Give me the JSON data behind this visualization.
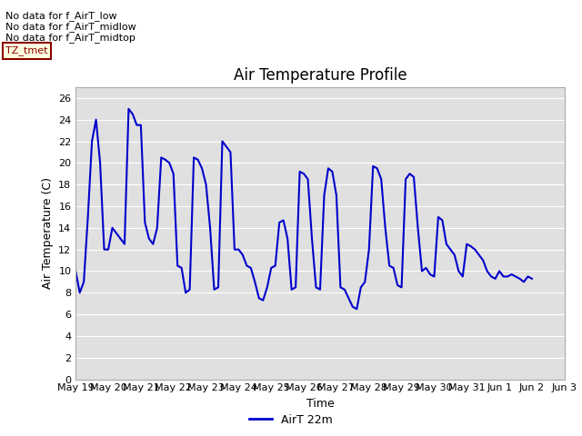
{
  "title": "Air Temperature Profile",
  "xlabel": "Time",
  "ylabel": "Air Temperature (C)",
  "ylim": [
    0,
    27
  ],
  "yticks": [
    0,
    2,
    4,
    6,
    8,
    10,
    12,
    14,
    16,
    18,
    20,
    22,
    24,
    26
  ],
  "line_color": "#0000cc",
  "line_width": 1.5,
  "background_color": "#e0e0e0",
  "legend_label": "AirT 22m",
  "annotations_left": [
    "No data for f_AirT_low",
    "No data for f_AirT_midlow",
    "No data for f_AirT_midtop"
  ],
  "annotation_box_text": "TZ_tmet",
  "x_tick_labels": [
    "May 19",
    "May 20",
    "May 21",
    "May 22",
    "May 23",
    "May 24",
    "May 25",
    "May 26",
    "May 27",
    "May 28",
    "May 29",
    "May 30",
    "May 31",
    "Jun 1",
    "Jun 2",
    "Jun 3"
  ],
  "time_data": [
    0,
    0.125,
    0.25,
    0.375,
    0.5,
    0.625,
    0.75,
    0.875,
    1.0,
    1.125,
    1.25,
    1.375,
    1.5,
    1.625,
    1.75,
    1.875,
    2.0,
    2.125,
    2.25,
    2.375,
    2.5,
    2.625,
    2.75,
    2.875,
    3.0,
    3.125,
    3.25,
    3.375,
    3.5,
    3.625,
    3.75,
    3.875,
    4.0,
    4.125,
    4.25,
    4.375,
    4.5,
    4.625,
    4.75,
    4.875,
    5.0,
    5.125,
    5.25,
    5.375,
    5.5,
    5.625,
    5.75,
    5.875,
    6.0,
    6.125,
    6.25,
    6.375,
    6.5,
    6.625,
    6.75,
    6.875,
    7.0,
    7.125,
    7.25,
    7.375,
    7.5,
    7.625,
    7.75,
    7.875,
    8.0,
    8.125,
    8.25,
    8.375,
    8.5,
    8.625,
    8.75,
    8.875,
    9.0,
    9.125,
    9.25,
    9.375,
    9.5,
    9.625,
    9.75,
    9.875,
    10.0,
    10.125,
    10.25,
    10.375,
    10.5,
    10.625,
    10.75,
    10.875,
    11.0,
    11.125,
    11.25,
    11.375,
    11.5,
    11.625,
    11.75,
    11.875,
    12.0,
    12.125,
    12.25,
    12.375,
    12.5,
    12.625,
    12.75,
    12.875,
    13.0,
    13.125,
    13.25,
    13.375,
    13.5,
    13.625,
    13.75,
    13.875,
    14.0
  ],
  "temp_data": [
    10.0,
    8.0,
    9.0,
    15.0,
    22.0,
    24.0,
    20.0,
    12.0,
    12.0,
    14.0,
    13.5,
    13.0,
    12.5,
    25.0,
    24.5,
    23.5,
    23.5,
    14.5,
    13.0,
    12.5,
    14.0,
    20.5,
    20.3,
    20.0,
    19.0,
    10.5,
    10.3,
    8.0,
    8.3,
    20.5,
    20.3,
    19.5,
    18.0,
    14.0,
    8.3,
    8.5,
    22.0,
    21.5,
    21.0,
    12.0,
    12.0,
    11.5,
    10.5,
    10.3,
    9.0,
    7.5,
    7.3,
    8.5,
    10.3,
    10.5,
    14.5,
    14.7,
    13.0,
    8.3,
    8.5,
    19.2,
    19.0,
    18.5,
    13.0,
    8.5,
    8.3,
    17.0,
    19.5,
    19.2,
    17.0,
    8.5,
    8.3,
    7.5,
    6.7,
    6.5,
    8.5,
    9.0,
    12.0,
    19.7,
    19.5,
    18.5,
    14.0,
    10.5,
    10.3,
    8.7,
    8.5,
    18.5,
    19.0,
    18.7,
    14.0,
    10.0,
    10.3,
    9.7,
    9.5,
    15.0,
    14.7,
    12.5,
    12.0,
    11.5,
    10.0,
    9.5,
    12.5,
    12.3,
    12.0,
    11.5,
    11.0,
    10.0,
    9.5,
    9.3,
    10.0,
    9.5,
    9.5,
    9.7,
    9.5,
    9.3,
    9.0,
    9.5,
    9.3
  ]
}
